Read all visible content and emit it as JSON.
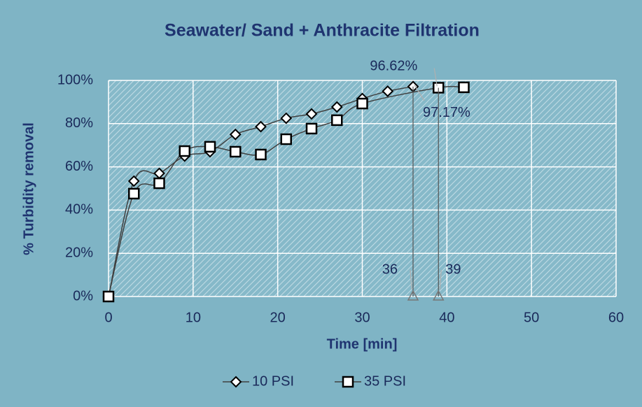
{
  "chart_data": {
    "type": "line",
    "title": "Seawater/ Sand + Anthracite Filtration",
    "xlabel": "Time [min]",
    "ylabel": "% Turbidity removal",
    "series": [
      {
        "name": "10 PSI",
        "marker": "diamond",
        "color": "#404040",
        "x": [
          0,
          3,
          6,
          9,
          12,
          15,
          18,
          21,
          24,
          27,
          30,
          33,
          36
        ],
        "values": [
          0,
          53.4,
          57,
          65,
          67,
          75,
          78.6,
          82.5,
          84.5,
          87.7,
          91.6,
          95,
          97.17
        ]
      },
      {
        "name": "35 PSI",
        "marker": "square",
        "color": "#404040",
        "x": [
          0,
          3,
          6,
          9,
          12,
          15,
          18,
          21,
          24,
          27,
          30,
          39,
          42
        ],
        "values": [
          0,
          47.6,
          52.4,
          67.3,
          69.3,
          67,
          65.7,
          72.8,
          77.7,
          81.6,
          89.3,
          96.62,
          96.8
        ]
      }
    ],
    "annotations": [
      {
        "text": "96.62%",
        "x": 39,
        "y": 96.62
      },
      {
        "text": "97.17%",
        "x": 36,
        "y": 97.17
      },
      {
        "text": "36",
        "x": 36,
        "y": 0
      },
      {
        "text": "39",
        "x": 39,
        "y": 0
      }
    ],
    "xlim": [
      0,
      60
    ],
    "xticks": [
      0,
      10,
      20,
      30,
      40,
      50,
      60
    ],
    "ylim": [
      0,
      100
    ],
    "yticks": [
      {
        "value": 0,
        "label": "0%"
      },
      {
        "value": 20,
        "label": "20%"
      },
      {
        "value": 40,
        "label": "40%"
      },
      {
        "value": 60,
        "label": "60%"
      },
      {
        "value": 80,
        "label": "80%"
      },
      {
        "value": 100,
        "label": "100%"
      }
    ],
    "grid": true
  }
}
